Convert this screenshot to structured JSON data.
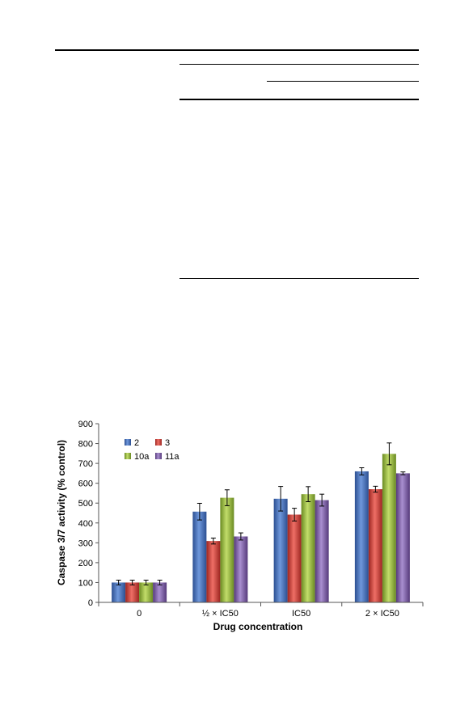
{
  "chart_data": {
    "type": "bar",
    "title": "",
    "xlabel": "Drug concentration",
    "ylabel": "Caspase 3/7 activity (% control)",
    "ylim": [
      0,
      900
    ],
    "yticks": [
      "0",
      "100",
      "200",
      "300",
      "400",
      "500",
      "600",
      "700",
      "800",
      "900"
    ],
    "categories": [
      "0",
      "½ × IC50",
      "IC50",
      "2 × IC50"
    ],
    "legend_position": "top-left",
    "series": [
      {
        "name": "2",
        "color": "#4472c4",
        "values": [
          100,
          457,
          522,
          660
        ],
        "errors": [
          12,
          42,
          62,
          18
        ]
      },
      {
        "name": "3",
        "color": "#d9423c",
        "values": [
          100,
          309,
          442,
          570
        ],
        "errors": [
          12,
          15,
          32,
          15
        ]
      },
      {
        "name": "10a",
        "color": "#9bbb3a",
        "values": [
          100,
          527,
          545,
          748
        ],
        "errors": [
          12,
          40,
          38,
          55
        ]
      },
      {
        "name": "11a",
        "color": "#8060a8",
        "values": [
          100,
          332,
          515,
          650
        ],
        "errors": [
          12,
          18,
          30,
          7
        ]
      }
    ]
  }
}
